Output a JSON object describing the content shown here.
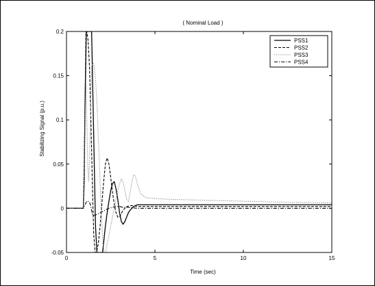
{
  "chart_data": {
    "type": "line",
    "title": "( Nominal Load )",
    "xlabel": "Time (sec)",
    "ylabel": "Stabilizing Signal (p.u.)",
    "xlim": [
      0,
      15
    ],
    "ylim": [
      -0.05,
      0.2
    ],
    "xticks": [
      0,
      5,
      10,
      15
    ],
    "yticks": [
      -0.05,
      0,
      0.05,
      0.1,
      0.15,
      0.2
    ],
    "xtick_labels": [
      "0",
      "5",
      "10",
      "15"
    ],
    "ytick_labels": [
      "-0.05",
      "0",
      "0.05",
      "0.1",
      "0.15",
      "0.2"
    ],
    "grid": false,
    "legend_position": "top-right",
    "series": [
      {
        "name": "PSS1",
        "style": "solid",
        "color": "#000000",
        "x": [
          0,
          0.95,
          1.0,
          1.05,
          1.12,
          1.2,
          1.28,
          1.34,
          1.38,
          1.42,
          1.48,
          1.56,
          1.64,
          1.72,
          1.8,
          1.88,
          1.96,
          2.04,
          2.12,
          2.2,
          2.3,
          2.4,
          2.5,
          2.6,
          2.7,
          2.8,
          2.9,
          3.0,
          3.1,
          3.2,
          3.3,
          3.4,
          3.5,
          3.6,
          3.7,
          3.8,
          3.9,
          4.0,
          4.2,
          4.4,
          4.6,
          4.8,
          5.0,
          6.0,
          8.0,
          10.0,
          12.0,
          15.0
        ],
        "y": [
          0,
          0,
          0.03,
          0.12,
          0.2,
          0.2,
          0.2,
          0.2,
          0.2,
          0.2,
          0.14,
          0.06,
          -0.02,
          -0.05,
          -0.05,
          -0.05,
          -0.05,
          -0.05,
          -0.035,
          -0.02,
          -0.005,
          0.008,
          0.02,
          0.028,
          0.03,
          0.022,
          0.01,
          -0.005,
          -0.015,
          -0.018,
          -0.015,
          -0.01,
          -0.005,
          -0.002,
          0.0,
          0.002,
          0.003,
          0.004,
          0.004,
          0.004,
          0.004,
          0.004,
          0.004,
          0.004,
          0.004,
          0.004,
          0.004,
          0.004
        ]
      },
      {
        "name": "PSS2",
        "style": "dashed",
        "color": "#000000",
        "x": [
          0,
          0.95,
          1.0,
          1.05,
          1.1,
          1.15,
          1.22,
          1.3,
          1.38,
          1.46,
          1.54,
          1.62,
          1.7,
          1.8,
          1.9,
          2.0,
          2.1,
          2.2,
          2.3,
          2.4,
          2.5,
          2.6,
          2.7,
          2.8,
          2.9,
          3.0,
          3.1,
          3.2,
          3.4,
          3.6,
          3.8,
          4.0,
          4.2,
          4.5,
          5.0,
          6.0,
          8.0,
          10.0,
          12.0,
          15.0
        ],
        "y": [
          0,
          0,
          0.05,
          0.12,
          0.2,
          0.2,
          0.19,
          0.16,
          0.1,
          0.03,
          -0.03,
          -0.05,
          -0.05,
          -0.04,
          -0.02,
          0.005,
          0.03,
          0.05,
          0.057,
          0.05,
          0.035,
          0.018,
          0.005,
          -0.005,
          -0.01,
          -0.01,
          -0.006,
          -0.002,
          0.002,
          0.003,
          0.003,
          0.002,
          0.002,
          0.002,
          0.002,
          0.002,
          0.002,
          0.002,
          0.002,
          0.002
        ]
      },
      {
        "name": "PSS3",
        "style": "dotted",
        "color": "#888888",
        "x": [
          0,
          0.95,
          1.0,
          1.05,
          1.1,
          1.15,
          1.2,
          1.25,
          1.3,
          1.35,
          1.42,
          1.5,
          1.58,
          1.66,
          1.74,
          1.82,
          1.9,
          1.98,
          2.06,
          2.14,
          2.22,
          2.3,
          2.4,
          2.5,
          2.6,
          2.7,
          2.8,
          2.9,
          3.0,
          3.1,
          3.2,
          3.3,
          3.4,
          3.5,
          3.6,
          3.7,
          3.8,
          3.9,
          4.0,
          4.2,
          4.5,
          5.0,
          6.0,
          8.0,
          10.0,
          12.0,
          15.0
        ],
        "y": [
          0,
          0,
          0.04,
          0.1,
          0.14,
          0.1,
          0.05,
          0.03,
          0.05,
          0.1,
          0.16,
          0.165,
          0.16,
          0.14,
          0.11,
          0.07,
          0.03,
          -0.01,
          -0.04,
          -0.05,
          -0.05,
          -0.04,
          -0.03,
          -0.02,
          -0.01,
          0.0,
          0.01,
          0.02,
          0.028,
          0.033,
          0.03,
          0.02,
          0.01,
          0.008,
          0.018,
          0.03,
          0.038,
          0.036,
          0.028,
          0.016,
          0.012,
          0.011,
          0.01,
          0.009,
          0.008,
          0.007,
          0.006
        ]
      },
      {
        "name": "PSS4",
        "style": "dashdot",
        "color": "#000000",
        "x": [
          0,
          0.95,
          1.0,
          1.05,
          1.1,
          1.15,
          1.22,
          1.3,
          1.35,
          1.4,
          1.45,
          1.5,
          1.6,
          1.7,
          1.8,
          2.0,
          2.2,
          2.4,
          2.6,
          2.8,
          3.0,
          3.2,
          3.5,
          4.0,
          5.0,
          6.0,
          8.0,
          10.0,
          12.0,
          15.0
        ],
        "y": [
          0,
          0,
          0.002,
          0.004,
          0.006,
          0.008,
          0.008,
          0.007,
          0.004,
          0.0,
          -0.006,
          -0.008,
          -0.008,
          -0.007,
          -0.006,
          -0.004,
          -0.002,
          0.0,
          0.001,
          0.002,
          0.002,
          0.001,
          0.001,
          0.0,
          0.0,
          0.0,
          0.0,
          0.0,
          0.0,
          0.0
        ]
      }
    ]
  }
}
